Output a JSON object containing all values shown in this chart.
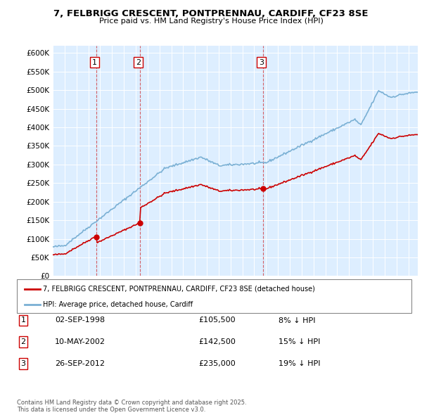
{
  "title": "7, FELBRIGG CRESCENT, PONTPRENNAU, CARDIFF, CF23 8SE",
  "subtitle": "Price paid vs. HM Land Registry's House Price Index (HPI)",
  "background_color": "#ffffff",
  "plot_bg_color": "#ddeeff",
  "grid_color": "#ffffff",
  "ylim": [
    0,
    620000
  ],
  "yticks": [
    0,
    50000,
    100000,
    150000,
    200000,
    250000,
    300000,
    350000,
    400000,
    450000,
    500000,
    550000,
    600000
  ],
  "ytick_labels": [
    "£0",
    "£50K",
    "£100K",
    "£150K",
    "£200K",
    "£250K",
    "£300K",
    "£350K",
    "£400K",
    "£450K",
    "£500K",
    "£550K",
    "£600K"
  ],
  "transactions": [
    {
      "num": 1,
      "date_label": "02-SEP-1998",
      "date_x": 1998.67,
      "price": 105500,
      "pct_label": "8% ↓ HPI"
    },
    {
      "num": 2,
      "date_label": "10-MAY-2002",
      "date_x": 2002.36,
      "price": 142500,
      "pct_label": "15% ↓ HPI"
    },
    {
      "num": 3,
      "date_label": "26-SEP-2012",
      "date_x": 2012.74,
      "price": 235000,
      "pct_label": "19% ↓ HPI"
    }
  ],
  "legend_property_label": "7, FELBRIGG CRESCENT, PONTPRENNAU, CARDIFF, CF23 8SE (detached house)",
  "legend_hpi_label": "HPI: Average price, detached house, Cardiff",
  "property_line_color": "#cc0000",
  "hpi_line_color": "#7ab0d4",
  "footer_text": "Contains HM Land Registry data © Crown copyright and database right 2025.\nThis data is licensed under the Open Government Licence v3.0.",
  "xlim_start": 1995.0,
  "xlim_end": 2025.8
}
